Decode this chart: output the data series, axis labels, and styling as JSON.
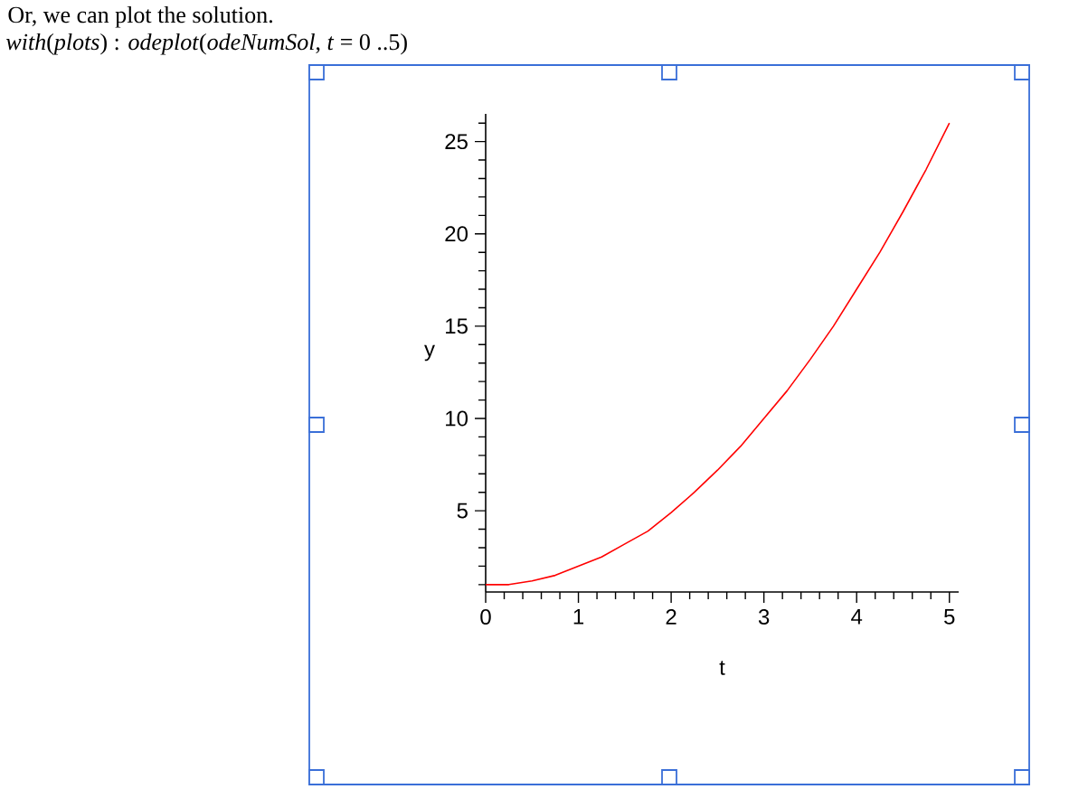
{
  "chart_data": {
    "type": "line",
    "annotations": [
      "Or, we can plot the solution.",
      "*with*(*plots*) : *odeplot*(*odeNumSol*, *t* = 0 ..5)"
    ],
    "xlabel": "t",
    "ylabel": "y",
    "x": [
      0,
      0.25,
      0.5,
      0.75,
      1,
      1.25,
      1.5,
      1.75,
      2,
      2.25,
      2.5,
      2.75,
      3,
      3.25,
      3.5,
      3.75,
      4,
      4.25,
      4.5,
      4.75,
      5
    ],
    "series": [
      {
        "color": "#ff0000",
        "values": [
          1.0,
          1.0,
          1.2,
          1.5,
          2.0,
          2.5,
          3.2,
          3.9,
          4.9,
          6.0,
          7.2,
          8.5,
          10.0,
          11.5,
          13.2,
          15.0,
          17.0,
          19.0,
          21.2,
          23.5,
          26.0
        ]
      }
    ],
    "xlim": [
      0,
      5.1
    ],
    "ylim": [
      0.6,
      26.5
    ],
    "xticks": [
      0,
      {
        "value": 0.2,
        "label": null
      },
      {
        "value": 0.4,
        "label": null
      },
      {
        "value": 0.6,
        "label": null
      },
      {
        "value": 0.8,
        "label": null
      },
      1,
      {
        "value": 1.2,
        "label": null
      },
      {
        "value": 1.4,
        "label": null
      },
      {
        "value": 1.6,
        "label": null
      },
      {
        "value": 1.8,
        "label": null
      },
      2,
      {
        "value": 2.2,
        "label": null
      },
      {
        "value": 2.4,
        "label": null
      },
      {
        "value": 2.6,
        "label": null
      },
      {
        "value": 2.8,
        "label": null
      },
      3,
      {
        "value": 3.2,
        "label": null
      },
      {
        "value": 3.4,
        "label": null
      },
      {
        "value": 3.6,
        "label": null
      },
      {
        "value": 3.8,
        "label": null
      },
      4,
      {
        "value": 4.2,
        "label": null
      },
      {
        "value": 4.4,
        "label": null
      },
      {
        "value": 4.6,
        "label": null
      },
      {
        "value": 4.8,
        "label": null
      },
      5
    ],
    "yticks": [
      {
        "value": 1,
        "label": null
      },
      {
        "value": 2,
        "label": null
      },
      {
        "value": 3,
        "label": null
      },
      {
        "value": 4,
        "label": null
      },
      5,
      {
        "value": 6,
        "label": null
      },
      {
        "value": 7,
        "label": null
      },
      {
        "value": 8,
        "label": null
      },
      {
        "value": 9,
        "label": null
      },
      10,
      {
        "value": 11,
        "label": null
      },
      {
        "value": 12,
        "label": null
      },
      {
        "value": 13,
        "label": null
      },
      {
        "value": 14,
        "label": null
      },
      15,
      {
        "value": 16,
        "label": null
      },
      {
        "value": 17,
        "label": null
      },
      {
        "value": 18,
        "label": null
      },
      {
        "value": 19,
        "label": null
      },
      20,
      {
        "value": 21,
        "label": null
      },
      {
        "value": 22,
        "label": null
      },
      {
        "value": 23,
        "label": null
      },
      {
        "value": 24,
        "label": null
      },
      25,
      {
        "value": 26,
        "label": null
      }
    ],
    "line_style": "solid"
  }
}
